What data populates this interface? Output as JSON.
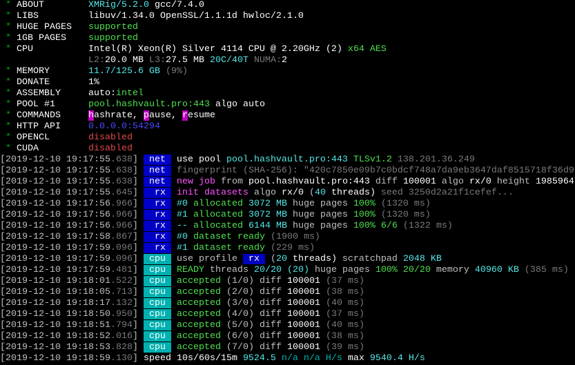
{
  "colors": {
    "background": "#000000",
    "tag_net": "#0000c8",
    "tag_rx": "#0000c8",
    "tag_cpu": "#00b0b0",
    "command_key": "#c000c0"
  },
  "header": [
    {
      "label": "ABOUT",
      "value": [
        [
          "XMRig/5.2.0",
          "C"
        ],
        [
          " gcc/7.4.0",
          "W"
        ]
      ]
    },
    {
      "label": "LIBS",
      "value": [
        [
          "libuv/1.34.0 OpenSSL/1.1.1d hwloc/2.1.0",
          "W"
        ]
      ]
    },
    {
      "label": "HUGE PAGES",
      "value": [
        [
          "supported",
          "g"
        ]
      ]
    },
    {
      "label": "1GB PAGES",
      "value": [
        [
          "supported",
          "g"
        ]
      ]
    },
    {
      "label": "CPU",
      "value": [
        [
          "Intel(R) Xeon(R) Silver 4114 CPU @ 2.20GHz (2)",
          "W"
        ],
        [
          " x64 AES",
          "g"
        ]
      ]
    },
    {
      "label": "",
      "value": [
        [
          "L2:",
          "k"
        ],
        [
          "20.0 MB",
          "W"
        ],
        [
          " L3:",
          "k"
        ],
        [
          "27.5 MB",
          "W"
        ],
        [
          " 20C/40T",
          "C"
        ],
        [
          " NUMA:",
          "k"
        ],
        [
          "2",
          "W"
        ]
      ]
    },
    {
      "label": "MEMORY",
      "value": [
        [
          "11.7/125.6 GB",
          "C"
        ],
        [
          " (9%)",
          "k"
        ]
      ]
    },
    {
      "label": "DONATE",
      "value": [
        [
          "1%",
          "W"
        ]
      ]
    },
    {
      "label": "ASSEMBLY",
      "value": [
        [
          "auto:",
          "W"
        ],
        [
          "intel",
          "g"
        ]
      ]
    },
    {
      "label": "POOL #1",
      "value": [
        [
          "pool.hashvault.pro:443",
          "g"
        ],
        [
          " algo auto",
          "W"
        ]
      ]
    },
    {
      "label": "COMMANDS",
      "value": [
        [
          "h",
          "bm"
        ],
        [
          "ashrate, ",
          "W"
        ],
        [
          "p",
          "bm"
        ],
        [
          "ause, ",
          "W"
        ],
        [
          "r",
          "bm"
        ],
        [
          "esume",
          "W"
        ]
      ]
    },
    {
      "label": "HTTP API",
      "value": [
        [
          "0.0.0.0:54294",
          "b"
        ]
      ]
    },
    {
      "label": "OPENCL",
      "value": [
        [
          "disabled",
          "r"
        ]
      ]
    },
    {
      "label": "CUDA",
      "value": [
        [
          "disabled",
          "r"
        ]
      ]
    }
  ],
  "log": [
    {
      "time": "[2019-12-10 19:17:55",
      "ms": ".638",
      "tag": "net",
      "msg": [
        [
          "use pool ",
          "W"
        ],
        [
          "pool.hashvault.pro:443",
          "C"
        ],
        [
          " TLSv1.2",
          "g"
        ],
        [
          " 138.201.36.249",
          "k"
        ]
      ]
    },
    {
      "time": "[2019-12-10 19:17:55",
      "ms": ".638",
      "tag": "net",
      "msg": [
        [
          "fingerprint (SHA-256): \"420c7850e09b7c0bdcf748a7da9eb3647daf8515718f36d9",
          "k"
        ]
      ]
    },
    {
      "time": "[2019-12-10 19:17:55",
      "ms": ".638",
      "tag": "net",
      "msg": [
        [
          "new job",
          "m"
        ],
        [
          " from ",
          "w"
        ],
        [
          "pool.hashvault.pro:443",
          "W"
        ],
        [
          " diff ",
          "w"
        ],
        [
          "100001",
          "W"
        ],
        [
          " algo ",
          "w"
        ],
        [
          "rx/0",
          "W"
        ],
        [
          " height ",
          "w"
        ],
        [
          "1985964",
          "W"
        ]
      ]
    },
    {
      "time": "[2019-12-10 19:17:55",
      "ms": ".645",
      "tag": "rx",
      "msg": [
        [
          "init datasets",
          "m"
        ],
        [
          " algo ",
          "w"
        ],
        [
          "rx/0",
          "W"
        ],
        [
          " (",
          "w"
        ],
        [
          "40",
          "C"
        ],
        [
          " threads)",
          "W"
        ],
        [
          " seed 3250d2a21f1cefef...",
          "k"
        ]
      ]
    },
    {
      "time": "[2019-12-10 19:17:56",
      "ms": ".966",
      "tag": "rx",
      "msg": [
        [
          "#0",
          "C"
        ],
        [
          " allocated ",
          "g"
        ],
        [
          "3072 MB",
          "C"
        ],
        [
          " huge pages ",
          "w"
        ],
        [
          "100%",
          "g"
        ],
        [
          " (1320 ms)",
          "k"
        ]
      ]
    },
    {
      "time": "[2019-12-10 19:17:56",
      "ms": ".966",
      "tag": "rx",
      "msg": [
        [
          "#1",
          "C"
        ],
        [
          " allocated ",
          "g"
        ],
        [
          "3072 MB",
          "C"
        ],
        [
          " huge pages ",
          "w"
        ],
        [
          "100%",
          "g"
        ],
        [
          " (1320 ms)",
          "k"
        ]
      ]
    },
    {
      "time": "[2019-12-10 19:17:56",
      "ms": ".966",
      "tag": "rx",
      "msg": [
        [
          "--",
          "C"
        ],
        [
          " allocated ",
          "g"
        ],
        [
          "6144 MB",
          "C"
        ],
        [
          " huge pages ",
          "w"
        ],
        [
          "100% 6/6",
          "g"
        ],
        [
          " (1322 ms)",
          "k"
        ]
      ]
    },
    {
      "time": "[2019-12-10 19:17:58",
      "ms": ".867",
      "tag": "rx",
      "msg": [
        [
          "#0",
          "C"
        ],
        [
          " dataset ready",
          "g"
        ],
        [
          " (1900 ms)",
          "k"
        ]
      ]
    },
    {
      "time": "[2019-12-10 19:17:59",
      "ms": ".096",
      "tag": "rx",
      "msg": [
        [
          "#1",
          "C"
        ],
        [
          " dataset ready",
          "g"
        ],
        [
          " (229 ms)",
          "k"
        ]
      ]
    },
    {
      "time": "[2019-12-10 19:17:59",
      "ms": ".096",
      "tag": "cpu",
      "msg": [
        [
          "use profile ",
          "w"
        ],
        [
          " rx ",
          "bb"
        ],
        [
          " (",
          "w"
        ],
        [
          "20",
          "C"
        ],
        [
          " threads)",
          "W"
        ],
        [
          " scratchpad ",
          "w"
        ],
        [
          "2048 KB",
          "C"
        ]
      ]
    },
    {
      "time": "[2019-12-10 19:17:59",
      "ms": ".481",
      "tag": "cpu",
      "msg": [
        [
          "READY",
          "g"
        ],
        [
          " threads ",
          "w"
        ],
        [
          "20/20",
          "C"
        ],
        [
          " (20)",
          "C"
        ],
        [
          " huge pages ",
          "w"
        ],
        [
          "100% 20/20",
          "g"
        ],
        [
          " memory ",
          "w"
        ],
        [
          "40960 KB",
          "C"
        ],
        [
          " (385 ms)",
          "k"
        ]
      ]
    },
    {
      "time": "[2019-12-10 19:18:01",
      "ms": ".522",
      "tag": "cpu",
      "msg": [
        [
          "accepted",
          "g"
        ],
        [
          " (1/0)",
          "w"
        ],
        [
          " diff ",
          "w"
        ],
        [
          "100001",
          "W"
        ],
        [
          " (37 ms)",
          "k"
        ]
      ]
    },
    {
      "time": "[2019-12-10 19:18:05",
      "ms": ".713",
      "tag": "cpu",
      "msg": [
        [
          "accepted",
          "g"
        ],
        [
          " (2/0)",
          "w"
        ],
        [
          " diff ",
          "w"
        ],
        [
          "100001",
          "W"
        ],
        [
          " (38 ms)",
          "k"
        ]
      ]
    },
    {
      "time": "[2019-12-10 19:18:17",
      "ms": ".132",
      "tag": "cpu",
      "msg": [
        [
          "accepted",
          "g"
        ],
        [
          " (3/0)",
          "w"
        ],
        [
          " diff ",
          "w"
        ],
        [
          "100001",
          "W"
        ],
        [
          " (40 ms)",
          "k"
        ]
      ]
    },
    {
      "time": "[2019-12-10 19:18:50",
      "ms": ".950",
      "tag": "cpu",
      "msg": [
        [
          "accepted",
          "g"
        ],
        [
          " (4/0)",
          "w"
        ],
        [
          " diff ",
          "w"
        ],
        [
          "100001",
          "W"
        ],
        [
          " (37 ms)",
          "k"
        ]
      ]
    },
    {
      "time": "[2019-12-10 19:18:51",
      "ms": ".794",
      "tag": "cpu",
      "msg": [
        [
          "accepted",
          "g"
        ],
        [
          " (5/0)",
          "w"
        ],
        [
          " diff ",
          "w"
        ],
        [
          "100001",
          "W"
        ],
        [
          " (40 ms)",
          "k"
        ]
      ]
    },
    {
      "time": "[2019-12-10 19:18:52",
      "ms": ".016",
      "tag": "cpu",
      "msg": [
        [
          "accepted",
          "g"
        ],
        [
          " (6/0)",
          "w"
        ],
        [
          " diff ",
          "w"
        ],
        [
          "100001",
          "W"
        ],
        [
          " (38 ms)",
          "k"
        ]
      ]
    },
    {
      "time": "[2019-12-10 19:18:53",
      "ms": ".828",
      "tag": "cpu",
      "msg": [
        [
          "accepted",
          "g"
        ],
        [
          " (7/0)",
          "w"
        ],
        [
          " diff ",
          "w"
        ],
        [
          "100001",
          "W"
        ],
        [
          " (39 ms)",
          "k"
        ]
      ]
    },
    {
      "time": "[2019-12-10 19:18:59",
      "ms": ".130",
      "tag": "",
      "msg": [
        [
          "speed 10s/60s/15m ",
          "W"
        ],
        [
          "9524.5",
          "C"
        ],
        [
          " n/a n/a H/s",
          "c"
        ],
        [
          " max ",
          "W"
        ],
        [
          "9540.4 H/s",
          "C"
        ]
      ]
    }
  ]
}
